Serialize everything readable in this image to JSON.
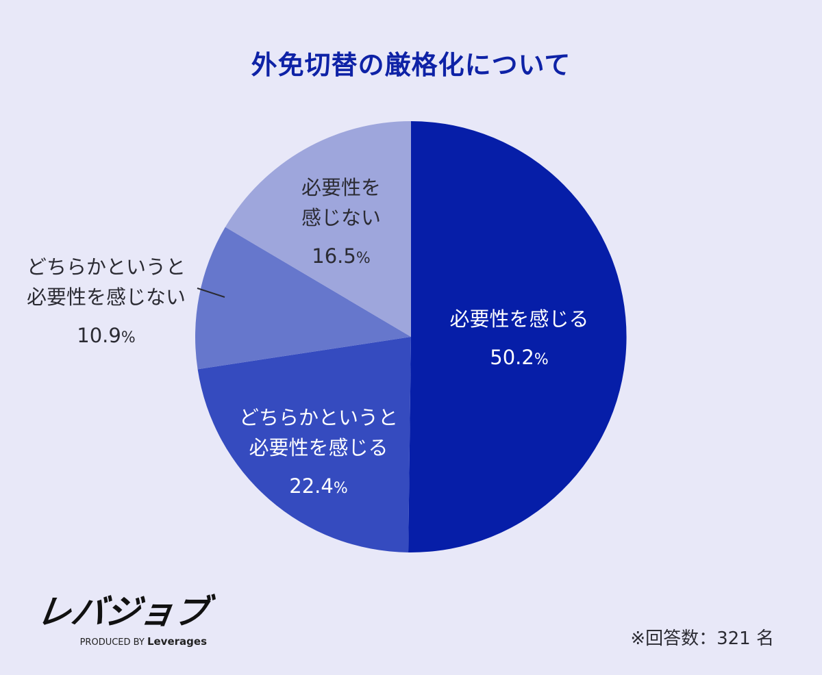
{
  "title": "外免切替の厳格化について",
  "chart_data": {
    "type": "pie",
    "title": "外免切替の厳格化について",
    "slices": [
      {
        "label_lines": [
          "必要性を感じる"
        ],
        "value": 50.2,
        "unit": "%",
        "color": "#061ea8"
      },
      {
        "label_lines": [
          "どちらかというと",
          "必要性を感じる"
        ],
        "value": 22.4,
        "unit": "%",
        "color": "#354bbf"
      },
      {
        "label_lines": [
          "どちらかというと",
          "必要性を感じない"
        ],
        "value": 10.9,
        "unit": "%",
        "color": "#6677cc"
      },
      {
        "label_lines": [
          "必要性を",
          "感じない"
        ],
        "value": 16.5,
        "unit": "%",
        "color": "#9ea6dc"
      }
    ],
    "start_angle_deg": 0,
    "direction": "clockwise"
  },
  "logo": {
    "brand": "レバジョブ",
    "produced_by": "PRODUCED BY",
    "company": "Leverages"
  },
  "note": "※回答数：321 名"
}
